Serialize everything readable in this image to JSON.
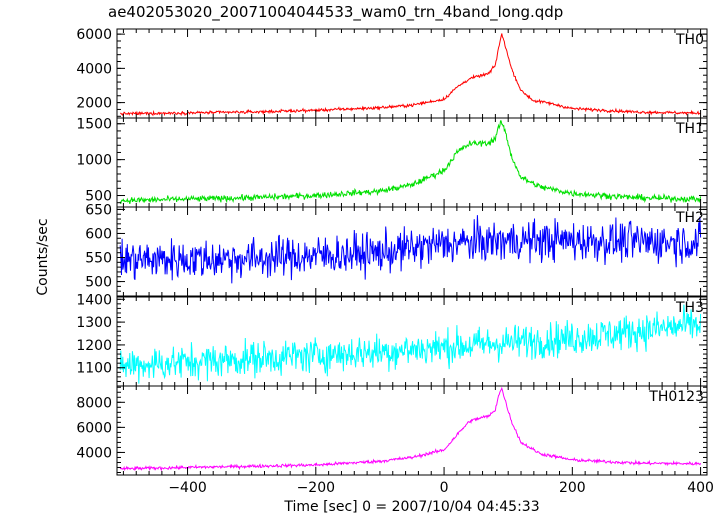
{
  "chart_data": {
    "type": "line",
    "title": "ae402053020_20071004044533_wam0_trn_4band_long.qdp",
    "xlabel": "Time [sec] 0 = 2007/10/04 04:45:33",
    "ylabel": "Counts/sec",
    "xlim": [
      -510,
      410
    ],
    "x_ticks": [
      -400,
      -200,
      0,
      200,
      400
    ],
    "x_tick_labels": [
      "−400",
      "−200",
      "0",
      "200",
      "400"
    ],
    "grid": false,
    "panels": [
      {
        "name": "TH0",
        "color": "#ff0000",
        "ylim": [
          1100,
          6300
        ],
        "y_ticks": [
          2000,
          4000,
          6000
        ],
        "y_tick_labels": [
          "2000",
          "4000",
          "6000"
        ],
        "noise": 60,
        "points": [
          [
            -500,
            1350
          ],
          [
            -400,
            1400
          ],
          [
            -300,
            1450
          ],
          [
            -200,
            1550
          ],
          [
            -100,
            1700
          ],
          [
            -50,
            1850
          ],
          [
            0,
            2200
          ],
          [
            20,
            2900
          ],
          [
            40,
            3400
          ],
          [
            60,
            3600
          ],
          [
            70,
            3700
          ],
          [
            80,
            4200
          ],
          [
            85,
            5200
          ],
          [
            90,
            6000
          ],
          [
            95,
            5400
          ],
          [
            105,
            4000
          ],
          [
            120,
            2700
          ],
          [
            140,
            2100
          ],
          [
            160,
            2000
          ],
          [
            200,
            1650
          ],
          [
            300,
            1450
          ],
          [
            400,
            1380
          ]
        ]
      },
      {
        "name": "TH1",
        "color": "#00e000",
        "ylim": [
          340,
          1580
        ],
        "y_ticks": [
          500,
          1000,
          1500
        ],
        "y_tick_labels": [
          "500",
          "1000",
          "1500"
        ],
        "noise": 30,
        "points": [
          [
            -500,
            430
          ],
          [
            -400,
            450
          ],
          [
            -300,
            470
          ],
          [
            -200,
            500
          ],
          [
            -100,
            560
          ],
          [
            -50,
            650
          ],
          [
            0,
            850
          ],
          [
            20,
            1100
          ],
          [
            40,
            1220
          ],
          [
            60,
            1230
          ],
          [
            70,
            1230
          ],
          [
            80,
            1300
          ],
          [
            85,
            1450
          ],
          [
            90,
            1520
          ],
          [
            95,
            1400
          ],
          [
            105,
            1050
          ],
          [
            120,
            750
          ],
          [
            150,
            620
          ],
          [
            200,
            530
          ],
          [
            300,
            470
          ],
          [
            400,
            450
          ]
        ]
      },
      {
        "name": "TH2",
        "color": "#0000ff",
        "ylim": [
          470,
          655
        ],
        "y_ticks": [
          500,
          550,
          600,
          650
        ],
        "y_tick_labels": [
          "500",
          "550",
          "600",
          "650"
        ],
        "noise": 30,
        "points": [
          [
            -500,
            545
          ],
          [
            -300,
            548
          ],
          [
            -100,
            560
          ],
          [
            0,
            578
          ],
          [
            100,
            585
          ],
          [
            200,
            585
          ],
          [
            300,
            583
          ],
          [
            400,
            582
          ]
        ]
      },
      {
        "name": "TH3",
        "color": "#00ffff",
        "ylim": [
          1020,
          1410
        ],
        "y_ticks": [
          1100,
          1200,
          1300,
          1400
        ],
        "y_tick_labels": [
          "1100",
          "1200",
          "1300",
          "1400"
        ],
        "noise": 55,
        "points": [
          [
            -500,
            1110
          ],
          [
            -300,
            1140
          ],
          [
            -100,
            1170
          ],
          [
            0,
            1190
          ],
          [
            100,
            1210
          ],
          [
            200,
            1230
          ],
          [
            300,
            1260
          ],
          [
            400,
            1290
          ]
        ]
      },
      {
        "name": "TH0123",
        "color": "#ff00ff",
        "ylim": [
          2200,
          9300
        ],
        "y_ticks": [
          4000,
          6000,
          8000
        ],
        "y_tick_labels": [
          "4000",
          "6000",
          "8000"
        ],
        "noise": 90,
        "points": [
          [
            -500,
            2700
          ],
          [
            -400,
            2800
          ],
          [
            -300,
            2900
          ],
          [
            -200,
            3000
          ],
          [
            -100,
            3300
          ],
          [
            -50,
            3600
          ],
          [
            0,
            4200
          ],
          [
            20,
            5400
          ],
          [
            40,
            6500
          ],
          [
            60,
            6800
          ],
          [
            70,
            6900
          ],
          [
            80,
            7400
          ],
          [
            85,
            8600
          ],
          [
            90,
            9100
          ],
          [
            95,
            8200
          ],
          [
            105,
            6500
          ],
          [
            120,
            4800
          ],
          [
            150,
            3900
          ],
          [
            200,
            3400
          ],
          [
            300,
            3150
          ],
          [
            400,
            3100
          ]
        ]
      }
    ]
  }
}
